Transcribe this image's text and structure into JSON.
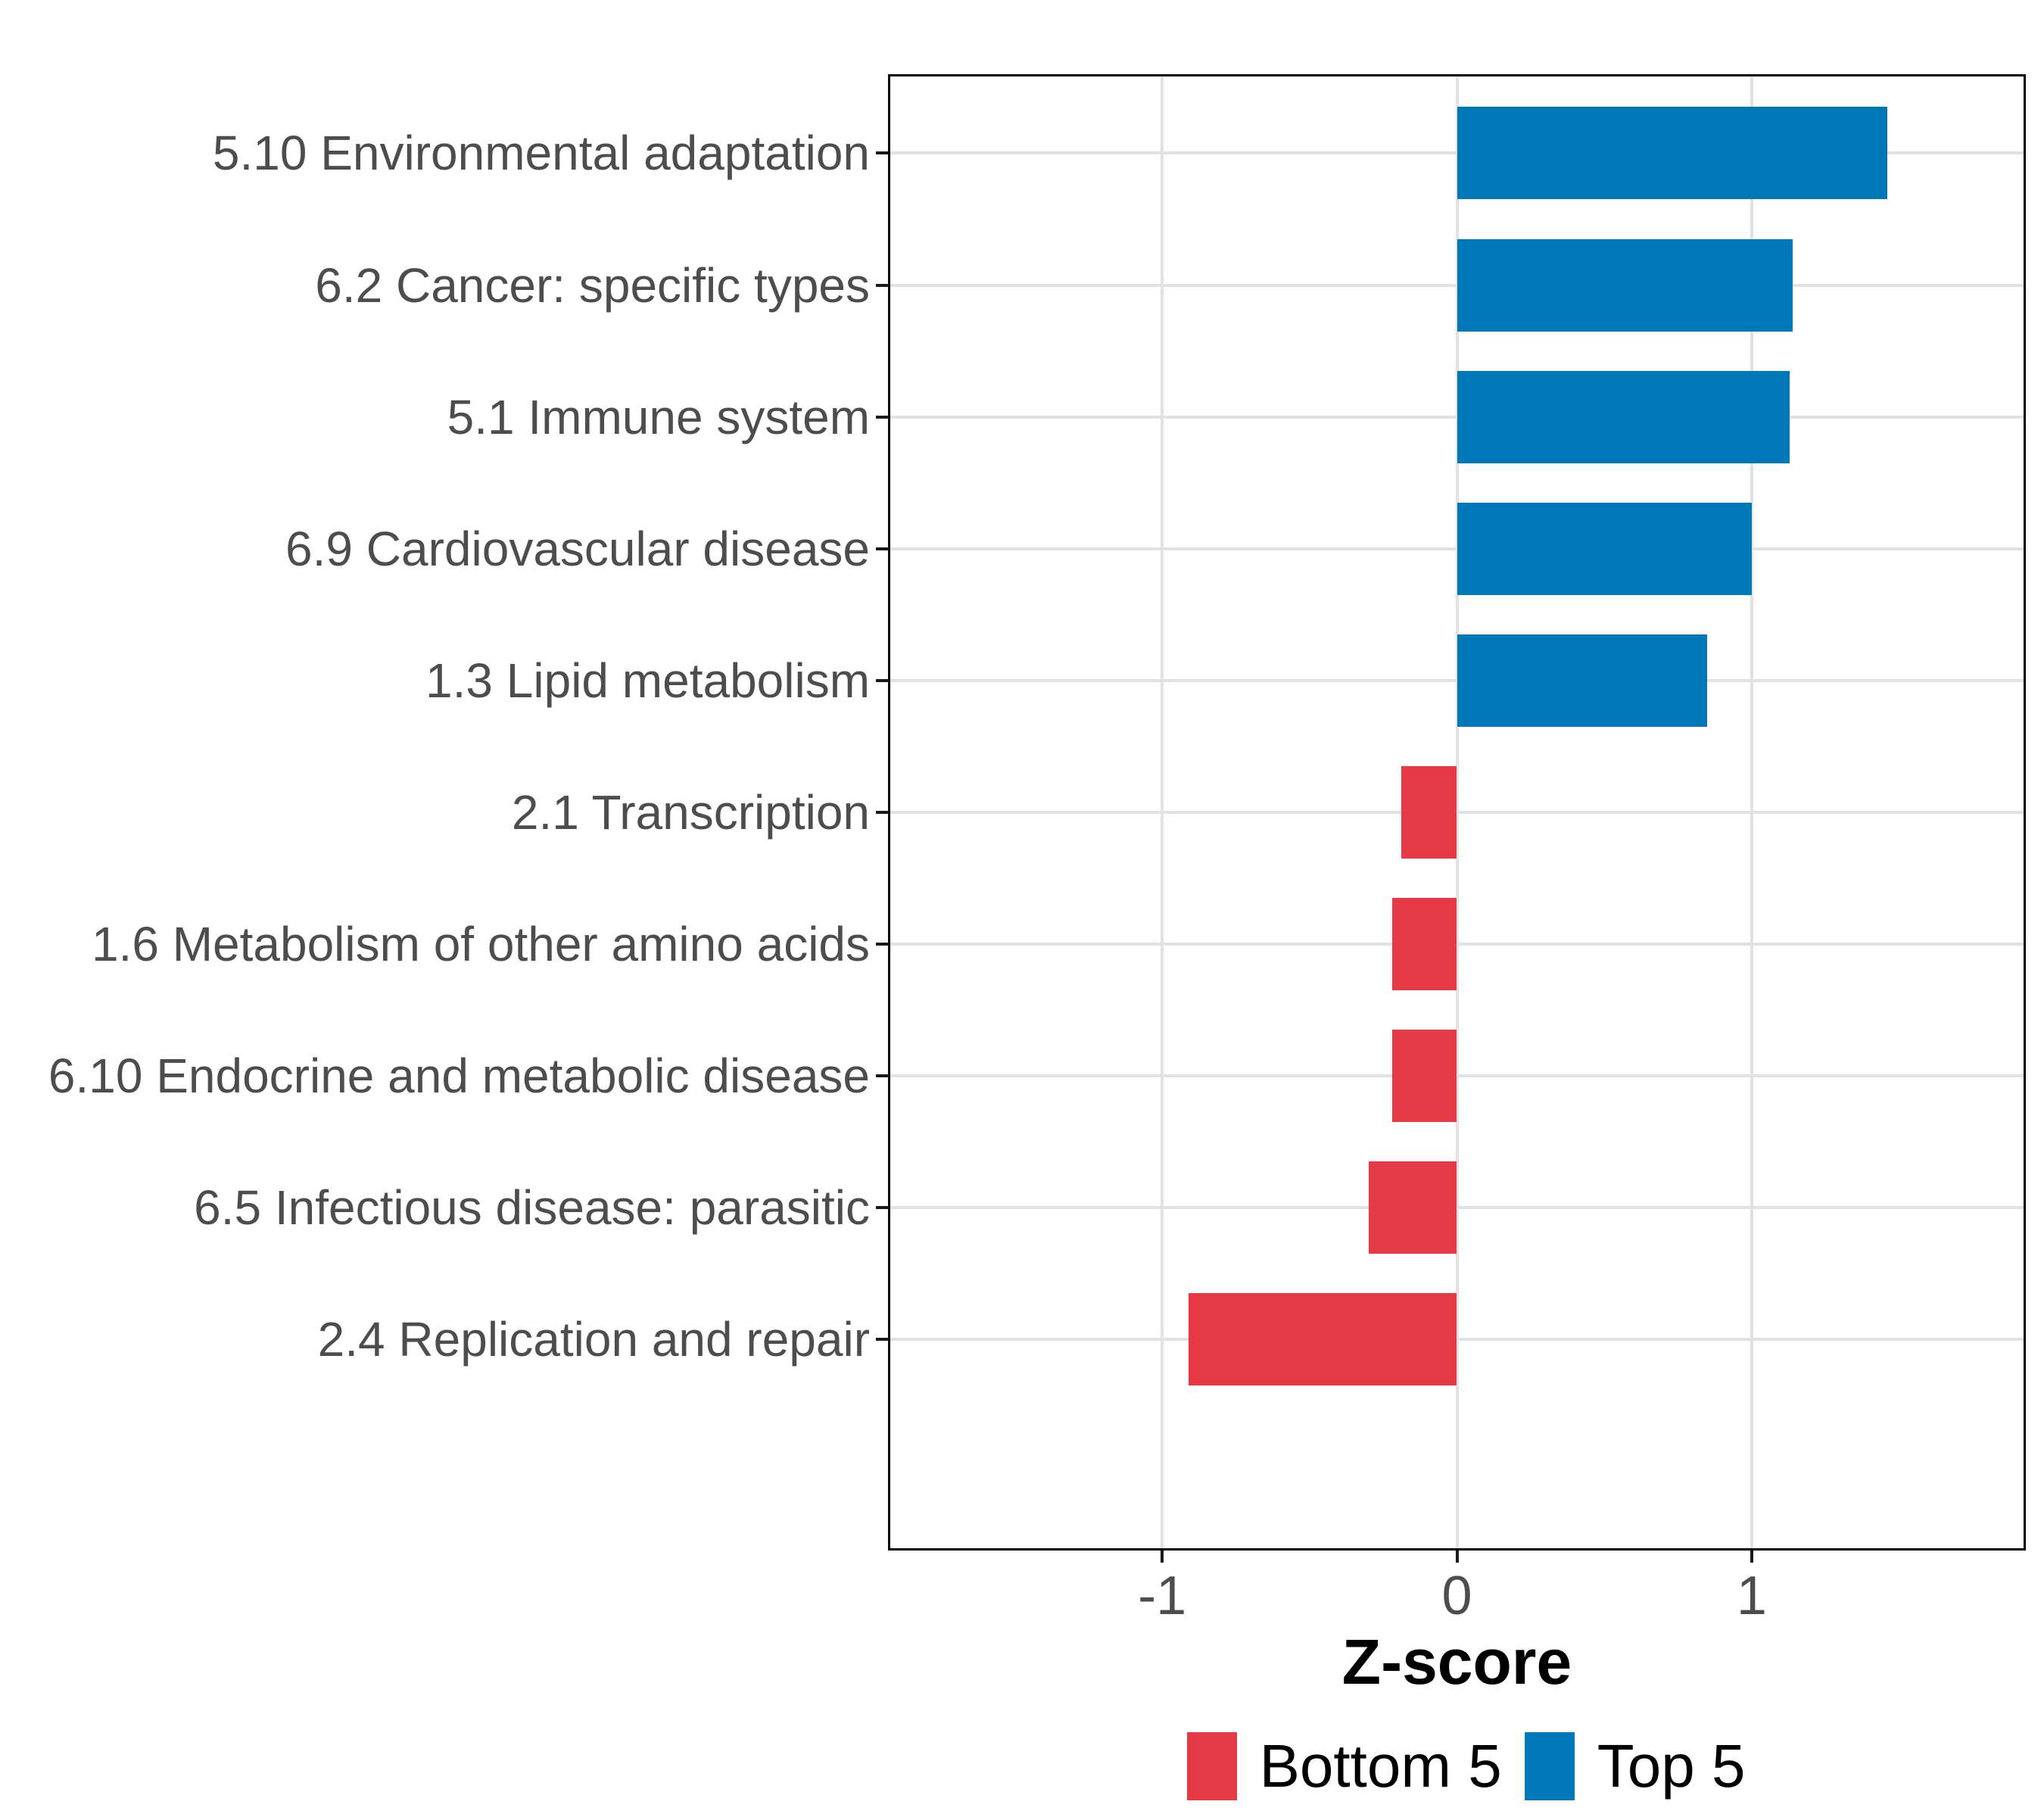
{
  "chart_data": {
    "type": "bar",
    "orientation": "horizontal",
    "title": "",
    "xlabel": "Z-score",
    "ylabel": "",
    "categories": [
      "5.10 Environmental adaptation",
      "6.2 Cancer: specific types",
      "5.1 Immune system",
      "6.9 Cardiovascular disease",
      "1.3 Lipid metabolism",
      "2.1 Transcription",
      "1.6 Metabolism of other amino acids",
      "6.10 Endocrine and metabolic disease",
      "6.5 Infectious disease: parasitic",
      "2.4 Replication and repair"
    ],
    "values": [
      1.46,
      1.14,
      1.13,
      1.0,
      0.85,
      -0.19,
      -0.22,
      -0.22,
      -0.3,
      -0.91
    ],
    "groups": [
      "Top 5",
      "Top 5",
      "Top 5",
      "Top 5",
      "Top 5",
      "Bottom 5",
      "Bottom 5",
      "Bottom 5",
      "Bottom 5",
      "Bottom 5"
    ],
    "x_ticks": [
      -1,
      0,
      1
    ],
    "x_tick_labels": [
      "-1",
      "0",
      "1"
    ],
    "xlim": [
      -1.93,
      1.93
    ],
    "bar_width_ratio": 0.7,
    "grid": "major",
    "legend_position": "bottom",
    "legend": {
      "entries": [
        {
          "label": "Bottom 5",
          "color": "#E63946"
        },
        {
          "label": "Top 5",
          "color": "#0077B6"
        }
      ]
    }
  },
  "colors": {
    "top5": "#0077B6",
    "bottom5": "#E63946",
    "grid": "#E2E2E2",
    "axis_text": "#4D4D4D",
    "panel_border": "#000000",
    "tick": "#1A1A1A",
    "background": "#FFFFFF"
  }
}
